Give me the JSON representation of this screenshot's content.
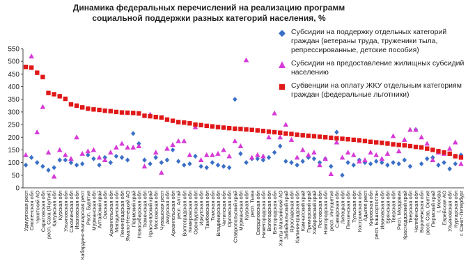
{
  "chart_data": {
    "type": "scatter",
    "title": "Динамика федеральных перечислений на реализацию программ социальной поддержки разных категорий населения, %",
    "ylim": [
      0,
      550
    ],
    "yticks": [
      0,
      50,
      100,
      150,
      200,
      250,
      300,
      350,
      400,
      450,
      500,
      550
    ],
    "grid": false,
    "legend_position": "top-right",
    "categories": [
      "Удмуртская респ",
      "Смоленская обл",
      "Чукотский АО",
      "Саратовская обл",
      "респ. Саха (Якутия)",
      "Калужская обл",
      "Курская обл",
      "Ульяновская обл",
      "Сахалинская обл",
      "Ивановская обл",
      "Кабардино-Балкарская респ",
      "Респ. Бурятия",
      "Мурманская обл",
      "Алтайский край",
      "Омская обл",
      "Архангельская обл",
      "Магаданская обл",
      "Ленинградская обл",
      "Ямало-Ненецкий АО",
      "Пермский край",
      "Новосибирская обл",
      "Тюменская обл",
      "Красноярский край",
      "Московская обл",
      "Чувашская респ",
      "Амурская обл",
      "Архангельская обл",
      "респ. Алтай",
      "Волгоградская обл",
      "Кемеровская обл",
      "Оренбургская обл",
      "Иркутская обл",
      "Тамбовская обл",
      "Томская обл",
      "Владимирская обл",
      "Читинская обл",
      "Орловская обл",
      "Ставропольский край",
      "Мурманская обл",
      "Курская обл",
      "респ. Тыва",
      "Свердловская обл",
      "Нижегородская обл",
      "Вологодская обл",
      "Белгородская обл",
      "Ханты-Мансийский АО",
      "Забайкальский край",
      "Ярославская обл",
      "Калининградская обл",
      "Камчатский край",
      "Приморский край",
      "Хабаровский край",
      "Ростовская обл",
      "Новгородская обл",
      "респ. Ингушетия",
      "Самарская обл",
      "Липецкая обл",
      "Пензенская обл",
      "Тульская обл",
      "Костромская обл",
      "Адыгея респ",
      "Кировская обл",
      "респ. Башкортостан",
      "Ивановская обл",
      "Брянская обл",
      "Тверская обл",
      "Респ. Мордовия",
      "Краснодарский край",
      "Тверская обл",
      "Челябинская обл",
      "Воронежская обл",
      "респ. Сев. Осетия",
      "Пермский край",
      "г. Москва",
      "Еврейская АО",
      "Ульяновская обл",
      "Кургарская обл",
      "г. Санкт-Петербург"
    ],
    "series": [
      {
        "name": "Субсидии на поддержку отдельных категорий граждан (ветераны труда, труженики тыла, репрессированные, детские пособия)",
        "color": "#3a6fc6",
        "marker": "diamond",
        "values": [
          90,
          120,
          100,
          85,
          70,
          80,
          110,
          110,
          100,
          90,
          95,
          130,
          115,
          90,
          120,
          100,
          125,
          120,
          110,
          215,
          175,
          110,
          95,
          120,
          100,
          110,
          150,
          105,
          90,
          95,
          125,
          85,
          80,
          100,
          90,
          85,
          80,
          350,
          135,
          100,
          115,
          115,
          110,
          120,
          140,
          165,
          105,
          100,
          90,
          105,
          120,
          115,
          100,
          115,
          85,
          220,
          50,
          100,
          90,
          110,
          100,
          95,
          105,
          100,
          90,
          100,
          95,
          110,
          85,
          230,
          95,
          115,
          120,
          90,
          100,
          75,
          95,
          130
        ]
      },
      {
        "name": "Субсидии на предоставление жилищных субсидий населению",
        "color": "#d63ad6",
        "marker": "triangle",
        "values": [
          130,
          520,
          220,
          320,
          140,
          45,
          150,
          130,
          115,
          200,
          135,
          145,
          150,
          120,
          110,
          140,
          160,
          175,
          160,
          160,
          165,
          85,
          290,
          140,
          60,
          155,
          170,
          185,
          185,
          130,
          240,
          110,
          130,
          130,
          135,
          150,
          125,
          185,
          165,
          505,
          120,
          130,
          125,
          200,
          295,
          200,
          250,
          190,
          120,
          150,
          130,
          140,
          90,
          115,
          55,
          180,
          120,
          140,
          130,
          105,
          110,
          140,
          130,
          115,
          135,
          205,
          145,
          190,
          230,
          230,
          200,
          175,
          110,
          140,
          135,
          155,
          180,
          95
        ]
      },
      {
        "name": "Субвенции на оплату ЖКУ отдельным категориям граждан (федеральные льготники)",
        "color": "#e01818",
        "marker": "square",
        "values": [
          478,
          475,
          455,
          438,
          375,
          370,
          362,
          352,
          330,
          325,
          318,
          313,
          310,
          308,
          305,
          303,
          300,
          298,
          297,
          296,
          294,
          285,
          283,
          280,
          278,
          270,
          265,
          260,
          258,
          255,
          250,
          248,
          245,
          243,
          240,
          238,
          236,
          234,
          233,
          231,
          229,
          227,
          225,
          222,
          220,
          218,
          215,
          213,
          210,
          208,
          206,
          204,
          202,
          200,
          198,
          196,
          194,
          192,
          190,
          188,
          185,
          182,
          180,
          178,
          175,
          172,
          170,
          168,
          165,
          162,
          160,
          155,
          150,
          145,
          140,
          135,
          125,
          120
        ]
      }
    ]
  }
}
